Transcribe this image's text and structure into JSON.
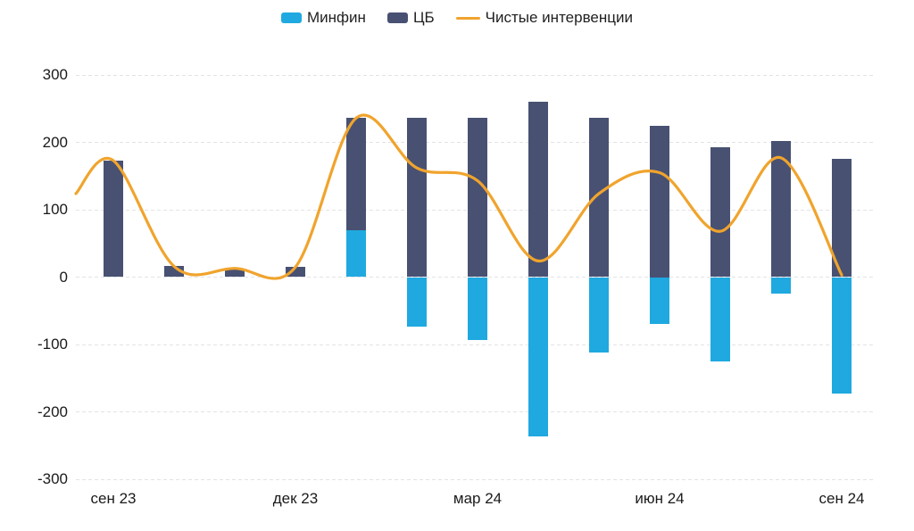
{
  "chart_data": {
    "type": "bar+line",
    "subtype": "stacked-bars-with-spline",
    "title": "",
    "xlabel": "",
    "ylabel": "",
    "months_count": 13,
    "x_tick_labels": [
      "сен 23",
      "дек 23",
      "мар 24",
      "июн 24",
      "сен 24"
    ],
    "x_tick_month_indices": [
      0,
      3,
      6,
      9,
      12
    ],
    "y_ticks": [
      300,
      200,
      100,
      0,
      -100,
      -200,
      -300
    ],
    "ylim": [
      -300,
      300
    ],
    "grid": "horizontal-dashed",
    "legend_position": "top-center",
    "background": "#ffffff",
    "grid_color": "#e3e3e7",
    "text_color": "#1a1a1a",
    "series": [
      {
        "name": "Минфин",
        "type": "bar",
        "color": "#1FA9E0",
        "values": [
          0,
          0,
          0,
          0,
          70,
          -74,
          -93,
          -236,
          -112,
          -70,
          -125,
          -25,
          -173
        ]
      },
      {
        "name": "ЦБ",
        "type": "bar",
        "color": "#485172",
        "values": [
          173,
          16,
          13,
          15,
          166,
          236,
          236,
          260,
          236,
          225,
          193,
          202,
          176
        ]
      },
      {
        "name": "Чистые интервенции",
        "type": "line",
        "color": "#F0A42D",
        "values": [
          173,
          16,
          13,
          15,
          236,
          162,
          143,
          24,
          124,
          155,
          68,
          177,
          3
        ],
        "lead_in_value_at_left_edge": 124
      }
    ]
  }
}
